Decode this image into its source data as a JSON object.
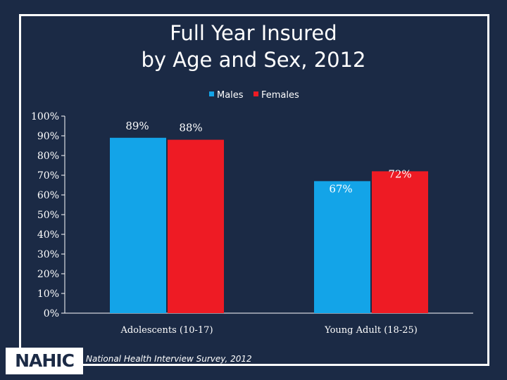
{
  "chart_data": {
    "type": "bar",
    "title_lines": [
      "Full Year Insured",
      "by Age and Sex, 2012"
    ],
    "categories": [
      "Adolescents (10-17)",
      "Young Adult (18-25)"
    ],
    "series": [
      {
        "name": "Males",
        "values": [
          89,
          67
        ],
        "labels": [
          "89%",
          "67%"
        ],
        "color": "#13a4e8"
      },
      {
        "name": "Females",
        "values": [
          88,
          72
        ],
        "labels": [
          "88%",
          "72%"
        ],
        "color": "#ee1b24"
      }
    ],
    "ylim": [
      0,
      100
    ],
    "yticks": [
      0,
      10,
      20,
      30,
      40,
      50,
      60,
      70,
      80,
      90,
      100
    ],
    "ytick_labels": [
      "0%",
      "10%",
      "20%",
      "30%",
      "40%",
      "50%",
      "60%",
      "70%",
      "80%",
      "90%",
      "100%"
    ],
    "legend_position": "top"
  },
  "footer": {
    "logo_text": "NAHIC",
    "source": "National Health Interview Survey, 2012"
  },
  "colors": {
    "background": "#1b2a45",
    "text": "#ffffff"
  }
}
